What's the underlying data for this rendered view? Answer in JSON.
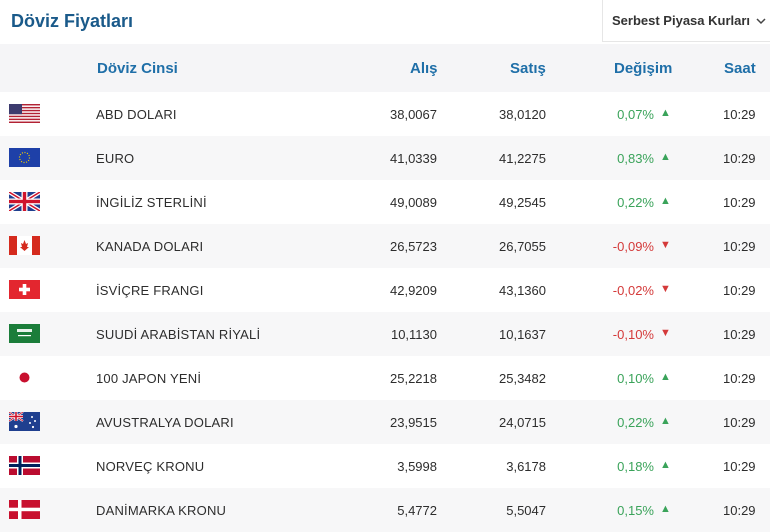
{
  "page": {
    "title": "Döviz Fiyatları"
  },
  "dropdown": {
    "label": "Serbest Piyasa Kurları",
    "icon": "chevron-down-icon"
  },
  "table": {
    "headers": {
      "currency": "Döviz Cinsi",
      "buy": "Alış",
      "sell": "Satış",
      "change": "Değişim",
      "time": "Saat"
    },
    "rows": [
      {
        "flag": "us-flag-icon",
        "name": "ABD DOLARI",
        "buy": "38,0067",
        "sell": "38,0120",
        "change": "0,07%",
        "arrow": "▲",
        "dir": "up",
        "time": "10:29"
      },
      {
        "flag": "eu-flag-icon",
        "name": "EURO",
        "buy": "41,0339",
        "sell": "41,2275",
        "change": "0,83%",
        "arrow": "▲",
        "dir": "up",
        "time": "10:29"
      },
      {
        "flag": "uk-flag-icon",
        "name": "İNGİLİZ STERLİNİ",
        "buy": "49,0089",
        "sell": "49,2545",
        "change": "0,22%",
        "arrow": "▲",
        "dir": "up",
        "time": "10:29"
      },
      {
        "flag": "ca-flag-icon",
        "name": "KANADA DOLARI",
        "buy": "26,5723",
        "sell": "26,7055",
        "change": "-0,09%",
        "arrow": "▼",
        "dir": "down",
        "time": "10:29"
      },
      {
        "flag": "ch-flag-icon",
        "name": "İSVİÇRE FRANGI",
        "buy": "42,9209",
        "sell": "43,1360",
        "change": "-0,02%",
        "arrow": "▼",
        "dir": "down",
        "time": "10:29"
      },
      {
        "flag": "sa-flag-icon",
        "name": "SUUDİ ARABİSTAN RİYALİ",
        "buy": "10,1130",
        "sell": "10,1637",
        "change": "-0,10%",
        "arrow": "▼",
        "dir": "down",
        "time": "10:29"
      },
      {
        "flag": "jp-flag-icon",
        "name": "100 JAPON YENİ",
        "buy": "25,2218",
        "sell": "25,3482",
        "change": "0,10%",
        "arrow": "▲",
        "dir": "up",
        "time": "10:29"
      },
      {
        "flag": "au-flag-icon",
        "name": "AVUSTRALYA DOLARI",
        "buy": "23,9515",
        "sell": "24,0715",
        "change": "0,22%",
        "arrow": "▲",
        "dir": "up",
        "time": "10:29"
      },
      {
        "flag": "no-flag-icon",
        "name": "NORVEÇ KRONU",
        "buy": "3,5998",
        "sell": "3,6178",
        "change": "0,18%",
        "arrow": "▲",
        "dir": "up",
        "time": "10:29"
      },
      {
        "flag": "dk-flag-icon",
        "name": "DANİMARKA KRONU",
        "buy": "5,4772",
        "sell": "5,5047",
        "change": "0,15%",
        "arrow": "▲",
        "dir": "up",
        "time": "10:29"
      }
    ]
  },
  "colors": {
    "title": "#1a5a8a",
    "header": "#1f6fa8",
    "up": "#3aa35a",
    "down": "#d43a3a"
  }
}
